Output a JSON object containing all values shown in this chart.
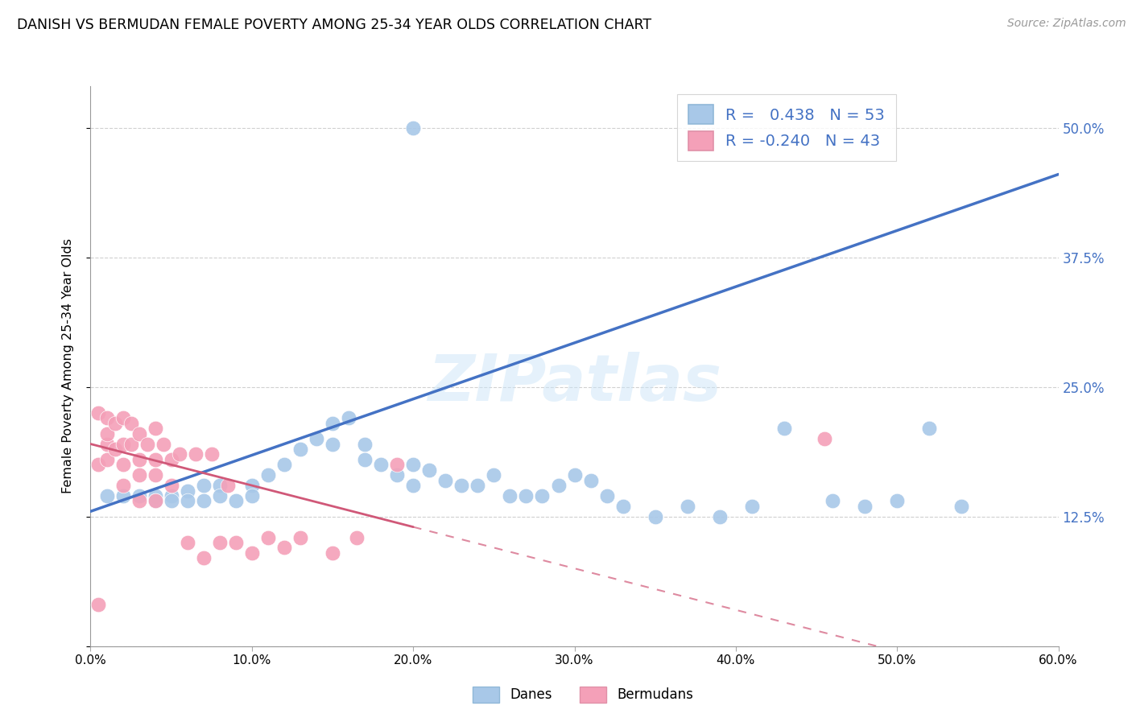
{
  "title": "DANISH VS BERMUDAN FEMALE POVERTY AMONG 25-34 YEAR OLDS CORRELATION CHART",
  "source": "Source: ZipAtlas.com",
  "ylabel": "Female Poverty Among 25-34 Year Olds",
  "xlim": [
    0.0,
    0.6
  ],
  "ylim": [
    0.0,
    0.54
  ],
  "xticks": [
    0.0,
    0.1,
    0.2,
    0.3,
    0.4,
    0.5,
    0.6
  ],
  "yticks": [
    0.0,
    0.125,
    0.25,
    0.375,
    0.5
  ],
  "xticklabels": [
    "0.0%",
    "10.0%",
    "20.0%",
    "30.0%",
    "40.0%",
    "50.0%",
    "60.0%"
  ],
  "yticklabels_right": [
    "",
    "12.5%",
    "25.0%",
    "37.5%",
    "50.0%"
  ],
  "watermark": "ZIPatlas",
  "legend_r_danes": " 0.438",
  "legend_n_danes": "53",
  "legend_r_bermudans": "-0.240",
  "legend_n_bermudans": "43",
  "danes_color": "#a8c8e8",
  "bermudans_color": "#f4a0b8",
  "danes_line_color": "#4472c4",
  "bermudans_line_color": "#d05878",
  "background_color": "#ffffff",
  "grid_color": "#d0d0d0",
  "danes_x": [
    0.01,
    0.02,
    0.03,
    0.04,
    0.04,
    0.05,
    0.05,
    0.06,
    0.06,
    0.07,
    0.07,
    0.08,
    0.08,
    0.09,
    0.1,
    0.1,
    0.11,
    0.12,
    0.13,
    0.14,
    0.15,
    0.15,
    0.16,
    0.17,
    0.17,
    0.18,
    0.19,
    0.2,
    0.2,
    0.21,
    0.22,
    0.23,
    0.24,
    0.25,
    0.26,
    0.27,
    0.28,
    0.29,
    0.3,
    0.31,
    0.32,
    0.33,
    0.35,
    0.37,
    0.39,
    0.41,
    0.43,
    0.46,
    0.48,
    0.5,
    0.52,
    0.54,
    0.2
  ],
  "danes_y": [
    0.145,
    0.145,
    0.145,
    0.145,
    0.14,
    0.145,
    0.14,
    0.15,
    0.14,
    0.155,
    0.14,
    0.155,
    0.145,
    0.14,
    0.155,
    0.145,
    0.165,
    0.175,
    0.19,
    0.2,
    0.215,
    0.195,
    0.22,
    0.195,
    0.18,
    0.175,
    0.165,
    0.175,
    0.155,
    0.17,
    0.16,
    0.155,
    0.155,
    0.165,
    0.145,
    0.145,
    0.145,
    0.155,
    0.165,
    0.16,
    0.145,
    0.135,
    0.125,
    0.135,
    0.125,
    0.135,
    0.21,
    0.14,
    0.135,
    0.14,
    0.21,
    0.135,
    0.5
  ],
  "bermudans_x": [
    0.005,
    0.005,
    0.005,
    0.01,
    0.01,
    0.01,
    0.01,
    0.015,
    0.015,
    0.02,
    0.02,
    0.02,
    0.02,
    0.025,
    0.025,
    0.03,
    0.03,
    0.03,
    0.03,
    0.035,
    0.04,
    0.04,
    0.04,
    0.04,
    0.045,
    0.05,
    0.05,
    0.055,
    0.06,
    0.065,
    0.07,
    0.075,
    0.08,
    0.085,
    0.09,
    0.1,
    0.11,
    0.12,
    0.13,
    0.15,
    0.165,
    0.19,
    0.455
  ],
  "bermudans_y": [
    0.225,
    0.175,
    0.04,
    0.18,
    0.195,
    0.205,
    0.22,
    0.19,
    0.215,
    0.155,
    0.175,
    0.195,
    0.22,
    0.195,
    0.215,
    0.14,
    0.165,
    0.18,
    0.205,
    0.195,
    0.14,
    0.165,
    0.18,
    0.21,
    0.195,
    0.155,
    0.18,
    0.185,
    0.1,
    0.185,
    0.085,
    0.185,
    0.1,
    0.155,
    0.1,
    0.09,
    0.105,
    0.095,
    0.105,
    0.09,
    0.105,
    0.175,
    0.2
  ],
  "danes_line_x0": 0.0,
  "danes_line_y0": 0.13,
  "danes_line_x1": 0.6,
  "danes_line_y1": 0.455,
  "bermudans_line_x0": 0.0,
  "bermudans_line_y0": 0.195,
  "bermudans_line_x1": 0.2,
  "bermudans_line_y1": 0.115
}
